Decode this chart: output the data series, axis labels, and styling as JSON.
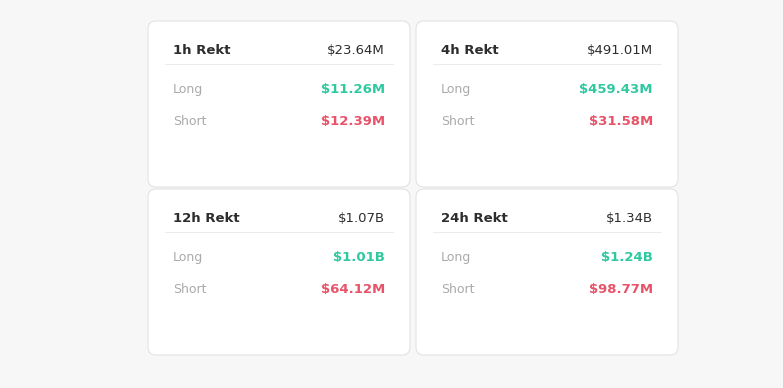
{
  "background_color": "#f7f7f7",
  "card_color": "#ffffff",
  "cards": [
    {
      "title": "1h Rekt",
      "total": "$23.64M",
      "long_label": "Long",
      "long_value": "$11.26M",
      "short_label": "Short",
      "short_value": "$12.39M"
    },
    {
      "title": "4h Rekt",
      "total": "$491.01M",
      "long_label": "Long",
      "long_value": "$459.43M",
      "short_label": "Short",
      "short_value": "$31.58M"
    },
    {
      "title": "12h Rekt",
      "total": "$1.07B",
      "long_label": "Long",
      "long_value": "$1.01B",
      "short_label": "Short",
      "short_value": "$64.12M"
    },
    {
      "title": "24h Rekt",
      "total": "$1.34B",
      "long_label": "Long",
      "long_value": "$1.24B",
      "short_label": "Short",
      "short_value": "$98.77M"
    }
  ],
  "title_color": "#2d2d2d",
  "total_color": "#2d2d2d",
  "label_color": "#aaaaaa",
  "long_color": "#2ec9a0",
  "short_color": "#e8536a",
  "title_fontsize": 9.5,
  "value_fontsize": 9.5,
  "label_fontsize": 9.0,
  "card_edge_color": "#e0e0e0",
  "card_linewidth": 0.7
}
